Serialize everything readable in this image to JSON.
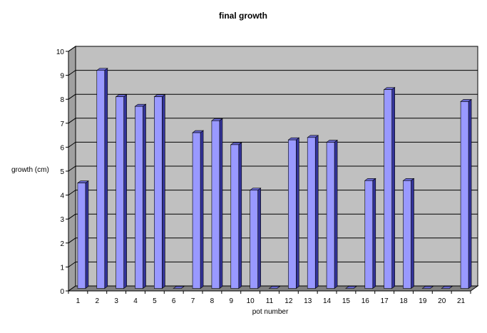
{
  "chart_data": {
    "type": "bar",
    "title": "final growth",
    "xlabel": "pot number",
    "ylabel": "growth (cm)",
    "categories": [
      "1",
      "2",
      "3",
      "4",
      "5",
      "6",
      "7",
      "8",
      "9",
      "10",
      "11",
      "12",
      "13",
      "14",
      "15",
      "16",
      "17",
      "18",
      "19",
      "20",
      "21"
    ],
    "values": [
      4.4,
      9.1,
      8.0,
      7.6,
      8.0,
      0,
      6.5,
      7.0,
      6.0,
      4.1,
      0,
      6.2,
      6.3,
      6.1,
      0,
      4.5,
      8.3,
      4.5,
      0,
      0,
      7.8
    ],
    "ylim": [
      0,
      10
    ],
    "yticks": [
      "0",
      "1",
      "2",
      "3",
      "4",
      "5",
      "6",
      "7",
      "8",
      "9",
      "10"
    ],
    "grid": true,
    "legend": "none",
    "style": "3d-column",
    "colors": {
      "bar_front": "#9999FF",
      "bar_side": "#333399",
      "bar_top": "#6666CC",
      "plot_background": "#C0C0C0",
      "floor": "#808080",
      "gridline": "#000000"
    }
  }
}
